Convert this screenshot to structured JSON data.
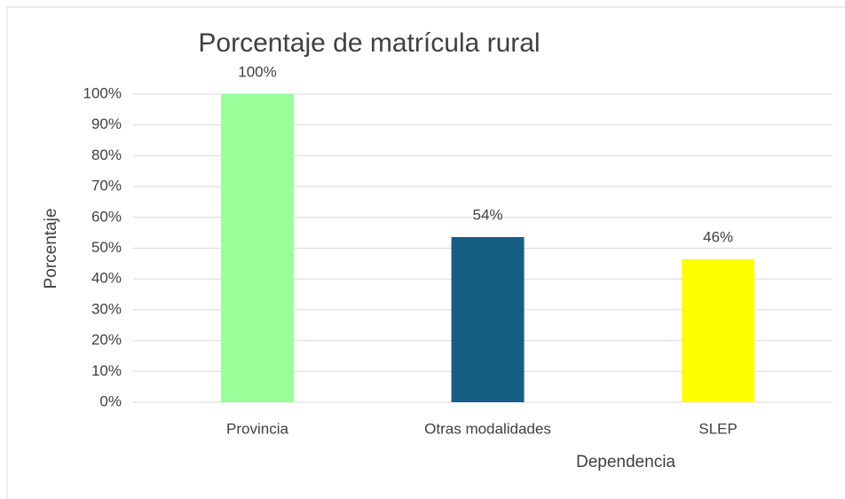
{
  "chart_data": {
    "type": "bar",
    "title": "Porcentaje de matrícula rural",
    "x_label": "Dependencia",
    "y_label": "Porcentaje",
    "categories": [
      "Provincia",
      "Otras modalidades",
      "SLEP"
    ],
    "values": [
      100,
      53.6,
      46.4
    ],
    "value_labels": [
      "100%",
      "54%",
      "46%"
    ],
    "colors": [
      "#99ff99",
      "#156082",
      "#ffff00"
    ],
    "ylim": [
      0,
      100
    ],
    "yticks": [
      {
        "value": 0,
        "label": "0%"
      },
      {
        "value": 10,
        "label": "10%"
      },
      {
        "value": 20,
        "label": "20%"
      },
      {
        "value": 30,
        "label": "30%"
      },
      {
        "value": 40,
        "label": "40%"
      },
      {
        "value": 50,
        "label": "50%"
      },
      {
        "value": 60,
        "label": "60%"
      },
      {
        "value": 70,
        "label": "70%"
      },
      {
        "value": 80,
        "label": "80%"
      },
      {
        "value": 90,
        "label": "90%"
      },
      {
        "value": 100,
        "label": "100%"
      }
    ],
    "grid": true
  }
}
